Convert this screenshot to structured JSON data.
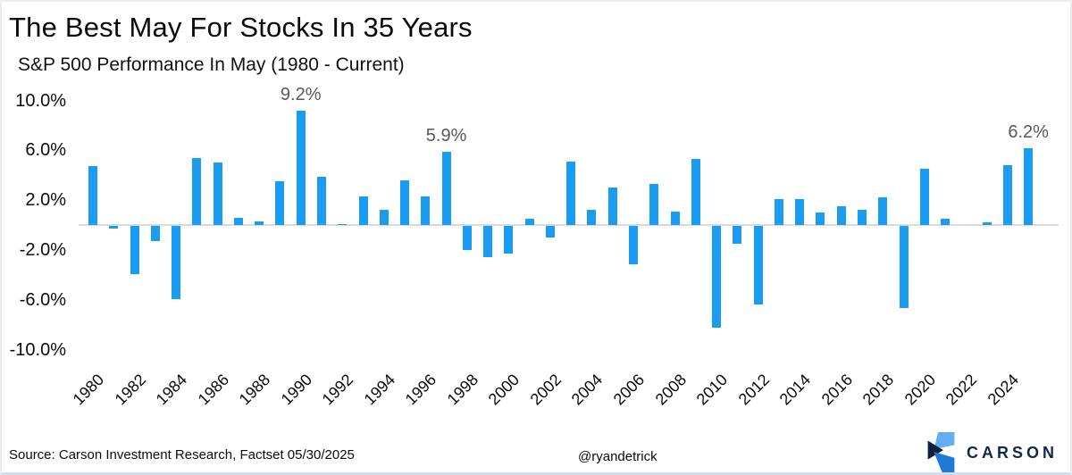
{
  "title": "The Best May For Stocks In 35 Years",
  "subtitle": "S&P 500 Performance In May (1980 - Current)",
  "footer": {
    "source": "Source: Carson Investment Research, Factset 05/30/2025",
    "handle": "@ryandetrick",
    "logo_text": "CARSON"
  },
  "colors": {
    "bar": "#1a9cf0",
    "zero_line": "#d9d9d9",
    "data_label": "#595959",
    "axis_text": "#0a0a0a",
    "logo_navy": "#13294b",
    "logo_light_blue": "#63aef2",
    "logo_mid_blue": "#2079d6",
    "logo_dark_navy": "#0e2240"
  },
  "chart_data": {
    "type": "bar",
    "title": "The Best May For Stocks In 35 Years",
    "subtitle": "S&P 500 Performance In May (1980 - Current)",
    "start_year": 1980,
    "x": [
      1980,
      1981,
      1982,
      1983,
      1984,
      1985,
      1986,
      1987,
      1988,
      1989,
      1990,
      1991,
      1992,
      1993,
      1994,
      1995,
      1996,
      1997,
      1998,
      1999,
      2000,
      2001,
      2002,
      2003,
      2004,
      2005,
      2006,
      2007,
      2008,
      2009,
      2010,
      2011,
      2012,
      2013,
      2014,
      2015,
      2016,
      2017,
      2018,
      2019,
      2020,
      2021,
      2022,
      2023,
      2024,
      2025
    ],
    "values": [
      4.7,
      -0.2,
      -3.9,
      -1.2,
      -5.9,
      5.4,
      5.0,
      0.6,
      0.3,
      3.5,
      9.2,
      3.9,
      0.1,
      2.3,
      1.2,
      3.6,
      2.3,
      5.9,
      -1.9,
      -2.5,
      -2.2,
      0.5,
      -0.9,
      5.1,
      1.2,
      3.0,
      -3.1,
      3.3,
      1.1,
      5.3,
      -8.2,
      -1.4,
      -6.3,
      2.1,
      2.1,
      1.0,
      1.5,
      1.2,
      2.2,
      -6.6,
      4.5,
      0.5,
      0.0,
      0.2,
      4.8,
      6.2
    ],
    "ylabel": "",
    "xlabel": "",
    "ylim": [
      -10.4,
      10.4
    ],
    "grid": false,
    "legend": "none",
    "yticks": [
      {
        "value": 10,
        "label": "10.0%"
      },
      {
        "value": 6,
        "label": "6.0%"
      },
      {
        "value": 2,
        "label": "2.0%"
      },
      {
        "value": -2,
        "label": "-2.0%"
      },
      {
        "value": -6,
        "label": "-6.0%"
      },
      {
        "value": -10,
        "label": "-10.0%"
      }
    ],
    "xticks": [
      1980,
      1982,
      1984,
      1986,
      1988,
      1990,
      1992,
      1994,
      1996,
      1998,
      2000,
      2002,
      2004,
      2006,
      2008,
      2010,
      2012,
      2014,
      2016,
      2018,
      2020,
      2022,
      2024
    ],
    "annotations": [
      {
        "year": 1990,
        "label": "9.2%"
      },
      {
        "year": 1997,
        "label": "5.9%"
      },
      {
        "year": 2025,
        "label": "6.2%"
      }
    ]
  }
}
